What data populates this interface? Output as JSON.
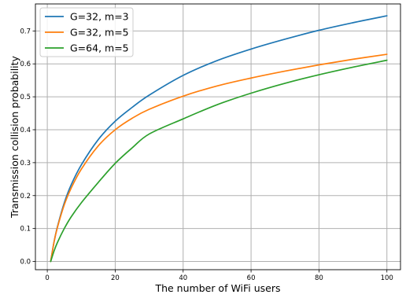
{
  "chart_data": {
    "type": "line",
    "title": "",
    "xlabel": "The number of WiFi users",
    "ylabel": "Transmission collision probability",
    "xlim": [
      -3.5,
      104
    ],
    "ylim": [
      -0.025,
      0.782
    ],
    "xticks": [
      0,
      20,
      40,
      60,
      80,
      100
    ],
    "xtick_labels": [
      "0",
      "20",
      "40",
      "60",
      "80",
      "100"
    ],
    "yticks": [
      0.0,
      0.1,
      0.2,
      0.3,
      0.4,
      0.5,
      0.6,
      0.7
    ],
    "ytick_labels": [
      "0.0",
      "0.1",
      "0.2",
      "0.3",
      "0.4",
      "0.5",
      "0.6",
      "0.7"
    ],
    "grid": true,
    "legend_position": "top-left",
    "x": [
      1,
      2,
      3,
      5,
      7,
      10,
      15,
      20,
      25,
      30,
      40,
      50,
      60,
      70,
      80,
      90,
      100
    ],
    "series": [
      {
        "name": "G=32, m=3",
        "color": "#1f77b4",
        "values": [
          0.0,
          0.06,
          0.106,
          0.178,
          0.232,
          0.293,
          0.37,
          0.426,
          0.468,
          0.505,
          0.565,
          0.61,
          0.645,
          0.675,
          0.702,
          0.725,
          0.746
        ]
      },
      {
        "name": "G=32, m=5",
        "color": "#ff7f0e",
        "values": [
          0.0,
          0.06,
          0.104,
          0.172,
          0.222,
          0.28,
          0.351,
          0.4,
          0.435,
          0.462,
          0.502,
          0.533,
          0.557,
          0.578,
          0.597,
          0.614,
          0.629
        ]
      },
      {
        "name": "G=64, m=5",
        "color": "#2ca02c",
        "values": [
          0.0,
          0.032,
          0.058,
          0.1,
          0.135,
          0.178,
          0.24,
          0.298,
          0.345,
          0.387,
          0.433,
          0.476,
          0.511,
          0.541,
          0.567,
          0.59,
          0.611
        ]
      }
    ]
  }
}
